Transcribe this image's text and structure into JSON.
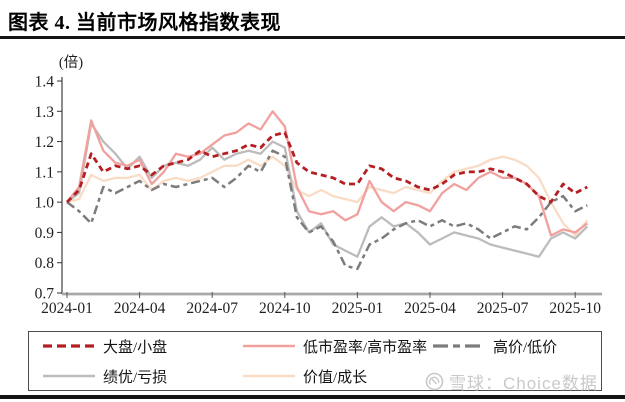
{
  "header": {
    "title": "图表 4. 当前市场风格指数表现"
  },
  "watermark": {
    "text": "雪球：Choice数据",
    "icon": "xueqiu-snowball-logo",
    "color": "#c9c9c9"
  },
  "chart_data": {
    "type": "line",
    "title": "当前市场风格指数表现",
    "unit_label": "(倍)",
    "ylim": [
      0.7,
      1.4
    ],
    "grid": false,
    "legend_position": "bottom-box",
    "y_tick_labels": [
      "0.7",
      "0.8",
      "0.9",
      "1.0",
      "1.1",
      "1.2",
      "1.3",
      "1.4"
    ],
    "x_ticks": [
      {
        "month": 0,
        "label": "2024-01"
      },
      {
        "month": 3,
        "label": "2024-04"
      },
      {
        "month": 6,
        "label": "2024-07"
      },
      {
        "month": 9,
        "label": "2024-10"
      },
      {
        "month": 12,
        "label": "2025-01"
      },
      {
        "month": 15,
        "label": "2025-04"
      },
      {
        "month": 18,
        "label": "2025-07"
      },
      {
        "month": 21,
        "label": "2025-10"
      }
    ],
    "x_months": [
      0,
      0.5,
      1,
      1.5,
      2,
      2.5,
      3,
      3.5,
      4,
      4.5,
      5,
      5.5,
      6,
      6.5,
      7,
      7.5,
      8,
      8.5,
      9,
      9.5,
      10,
      10.5,
      11,
      11.5,
      12,
      12.5,
      13,
      13.5,
      14,
      14.5,
      15,
      15.5,
      16,
      16.5,
      17,
      17.5,
      18,
      18.5,
      19,
      19.5,
      20,
      20.5,
      21,
      21.5
    ],
    "series": [
      {
        "name": "大盘/小盘",
        "color": "#b41f24",
        "line_style": "dashed",
        "values": [
          1.0,
          1.04,
          1.16,
          1.1,
          1.12,
          1.11,
          1.12,
          1.09,
          1.12,
          1.13,
          1.14,
          1.17,
          1.15,
          1.16,
          1.17,
          1.19,
          1.18,
          1.22,
          1.23,
          1.13,
          1.1,
          1.09,
          1.08,
          1.06,
          1.06,
          1.12,
          1.11,
          1.08,
          1.07,
          1.05,
          1.04,
          1.06,
          1.09,
          1.1,
          1.1,
          1.11,
          1.1,
          1.08,
          1.06,
          1.02,
          1.0,
          1.06,
          1.03,
          1.05
        ]
      },
      {
        "name": "低市盈率/高市盈率",
        "color": "#f1a19d",
        "line_style": "solid",
        "values": [
          1.0,
          1.05,
          1.27,
          1.17,
          1.13,
          1.12,
          1.14,
          1.06,
          1.1,
          1.16,
          1.15,
          1.16,
          1.19,
          1.22,
          1.23,
          1.26,
          1.24,
          1.3,
          1.25,
          1.05,
          0.97,
          0.96,
          0.97,
          0.94,
          0.96,
          1.07,
          1.0,
          0.97,
          1.0,
          0.99,
          0.97,
          1.03,
          1.06,
          1.04,
          1.08,
          1.1,
          1.08,
          1.08,
          1.06,
          1.02,
          0.89,
          0.91,
          0.9,
          0.93
        ]
      },
      {
        "name": "高价/低价",
        "color": "#7c7c7c",
        "line_style": "long-short-dash",
        "values": [
          1.0,
          0.97,
          0.93,
          1.05,
          1.03,
          1.05,
          1.07,
          1.04,
          1.06,
          1.05,
          1.06,
          1.07,
          1.08,
          1.05,
          1.08,
          1.12,
          1.1,
          1.17,
          1.15,
          0.95,
          0.9,
          0.92,
          0.87,
          0.79,
          0.78,
          0.86,
          0.88,
          0.91,
          0.93,
          0.94,
          0.92,
          0.94,
          0.92,
          0.93,
          0.91,
          0.88,
          0.9,
          0.92,
          0.91,
          0.95,
          1.0,
          1.02,
          0.97,
          0.99
        ]
      },
      {
        "name": "绩优/亏损",
        "color": "#bcbcbc",
        "line_style": "solid",
        "values": [
          1.0,
          1.03,
          1.26,
          1.2,
          1.16,
          1.11,
          1.15,
          1.08,
          1.12,
          1.13,
          1.12,
          1.14,
          1.18,
          1.14,
          1.16,
          1.17,
          1.16,
          1.2,
          1.18,
          0.97,
          0.9,
          0.93,
          0.86,
          0.84,
          0.82,
          0.92,
          0.95,
          0.92,
          0.93,
          0.9,
          0.86,
          0.88,
          0.9,
          0.89,
          0.88,
          0.86,
          0.85,
          0.84,
          0.83,
          0.82,
          0.88,
          0.9,
          0.88,
          0.92
        ]
      },
      {
        "name": "价值/成长",
        "color": "#f9dcc6",
        "line_style": "solid",
        "values": [
          1.0,
          1.01,
          1.09,
          1.07,
          1.08,
          1.08,
          1.09,
          1.04,
          1.07,
          1.08,
          1.07,
          1.08,
          1.1,
          1.12,
          1.12,
          1.14,
          1.12,
          1.15,
          1.12,
          1.04,
          1.02,
          1.04,
          1.02,
          1.01,
          1.0,
          1.05,
          1.04,
          1.03,
          1.05,
          1.04,
          1.03,
          1.07,
          1.1,
          1.11,
          1.12,
          1.14,
          1.15,
          1.14,
          1.12,
          1.08,
          1.0,
          0.93,
          0.89,
          0.94
        ]
      }
    ]
  }
}
